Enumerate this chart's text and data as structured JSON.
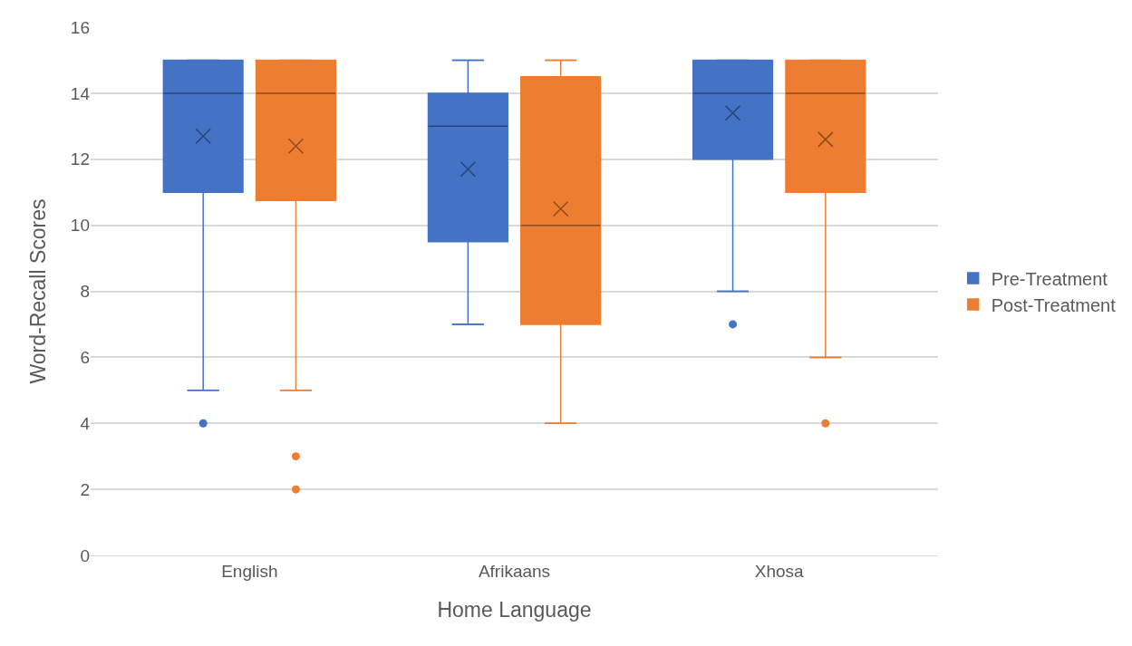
{
  "chart_data": {
    "type": "box",
    "xlabel": "Home Language",
    "ylabel": "Word-Recall Scores",
    "categories": [
      "English",
      "Afrikaans",
      "Xhosa"
    ],
    "ylim": [
      0,
      16
    ],
    "yticks": [
      0,
      2,
      4,
      6,
      8,
      10,
      12,
      14,
      16
    ],
    "grid": "y",
    "legend": "right",
    "marker": "cross",
    "series": [
      {
        "name": "Pre-Treatment",
        "color": "#4472c4",
        "boxes": [
          {
            "low": 5,
            "q1": 11,
            "median": 14,
            "q3": 15,
            "high": 15,
            "mean": 12.7,
            "outliers": [
              4
            ]
          },
          {
            "low": 7,
            "q1": 9.5,
            "median": 13,
            "q3": 14,
            "high": 15,
            "mean": 11.7
          },
          {
            "low": 8,
            "q1": 12,
            "median": 14,
            "q3": 15,
            "high": 15,
            "mean": 13.4,
            "outliers": [
              7
            ]
          }
        ]
      },
      {
        "name": "Post-Treatment",
        "color": "#ed7d31",
        "boxes": [
          {
            "low": 5,
            "q1": 10.75,
            "median": 14,
            "q3": 15,
            "high": 15,
            "mean": 12.4,
            "outliers": [
              3,
              2
            ]
          },
          {
            "low": 4,
            "q1": 7,
            "median": 10,
            "q3": 14.5,
            "high": 15,
            "mean": 10.5
          },
          {
            "low": 6,
            "q1": 11,
            "median": 14,
            "q3": 15,
            "high": 15,
            "mean": 12.6,
            "outliers": [
              4
            ]
          }
        ]
      }
    ]
  }
}
